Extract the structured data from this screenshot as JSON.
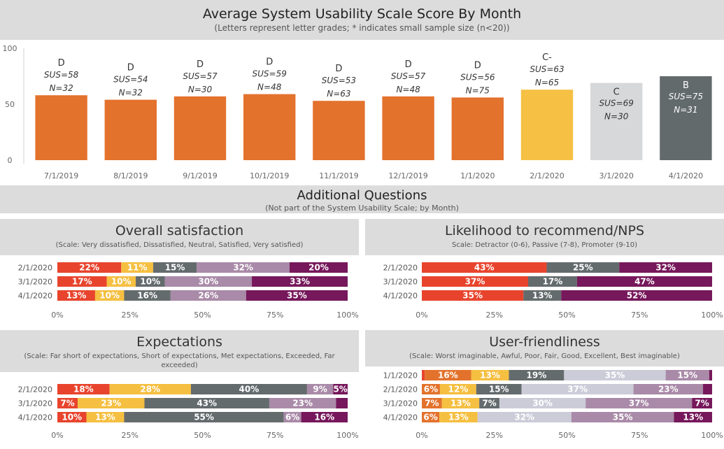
{
  "header": {
    "title": "Average System Usability Scale Score By Month",
    "subtitle": "(Letters represent letter grades; * indicates small sample size (n<20))"
  },
  "additional": {
    "title": "Additional Questions",
    "subtitle": "(Not part of the System Usability Scale; by Month)"
  },
  "colors": {
    "orange": "#e3722d",
    "yellow": "#f5c044",
    "lightgray": "#d6d8da",
    "darkgray": "#636a6c",
    "red": "#e8442d",
    "amber": "#f5bf41",
    "slate": "#646b6d",
    "lilac": "#ccccd9",
    "mauve": "#a98aa8",
    "plum": "#76185b"
  },
  "chart_data": [
    {
      "type": "bar",
      "title": "Average System Usability Scale Score By Month",
      "categories": [
        "7/1/2019",
        "8/1/2019",
        "9/1/2019",
        "10/1/2019",
        "11/1/2019",
        "12/1/2019",
        "1/1/2020",
        "2/1/2020",
        "3/1/2020",
        "4/1/2020"
      ],
      "values": [
        58,
        54,
        57,
        59,
        53,
        57,
        56,
        63,
        69,
        75
      ],
      "grades": [
        "D",
        "D",
        "D",
        "D",
        "D",
        "D",
        "D",
        "C-",
        "C",
        "B"
      ],
      "sus_labels": [
        "SUS=58",
        "SUS=54",
        "SUS=57",
        "SUS=59",
        "SUS=53",
        "SUS=57",
        "SUS=56",
        "SUS=63",
        "SUS=69",
        "SUS=75"
      ],
      "n_labels": [
        "N=32",
        "N=32",
        "N=30",
        "N=48",
        "N=63",
        "N=48",
        "N=75",
        "N=65",
        "N=30",
        "N=31"
      ],
      "bar_colors": [
        "#e3722d",
        "#e3722d",
        "#e3722d",
        "#e3722d",
        "#e3722d",
        "#e3722d",
        "#e3722d",
        "#f5c044",
        "#d6d8da",
        "#636a6c"
      ],
      "ylim": [
        0,
        100
      ],
      "yticks": [
        "0",
        "50",
        "100"
      ],
      "grid": false
    },
    {
      "type": "bar",
      "stacked": true,
      "orientation": "horizontal",
      "title": "Overall satisfaction",
      "subtitle": "(Scale: Very dissatisfied, Dissatisfied, Neutral, Satisfied, Very satisfied)",
      "categories": [
        "2/1/2020",
        "3/1/2020",
        "4/1/2020"
      ],
      "segment_colors": [
        "#e8442d",
        "#f5bf41",
        "#646b6d",
        "#a98aa8",
        "#76185b"
      ],
      "rows": [
        {
          "values": [
            22,
            11,
            15,
            32,
            20
          ],
          "labels": [
            "22%",
            "11%",
            "15%",
            "32%",
            "20%"
          ]
        },
        {
          "values": [
            17,
            10,
            10,
            30,
            33
          ],
          "labels": [
            "17%",
            "10%",
            "10%",
            "30%",
            "33%"
          ]
        },
        {
          "values": [
            13,
            10,
            16,
            26,
            35
          ],
          "labels": [
            "13%",
            "10%",
            "16%",
            "26%",
            "35%"
          ]
        }
      ],
      "xticks": [
        "0%",
        "25%",
        "50%",
        "75%",
        "100%"
      ]
    },
    {
      "type": "bar",
      "stacked": true,
      "orientation": "horizontal",
      "title": "Likelihood to recommend/NPS",
      "subtitle": "Scale: Detractor (0-6), Passive (7-8), Promoter (9-10)",
      "categories": [
        "2/1/2020",
        "3/1/2020",
        "4/1/2020"
      ],
      "segment_colors": [
        "#e8442d",
        "#646b6d",
        "#76185b"
      ],
      "rows": [
        {
          "values": [
            43,
            25,
            32
          ],
          "labels": [
            "43%",
            "25%",
            "32%"
          ]
        },
        {
          "values": [
            37,
            17,
            47
          ],
          "labels": [
            "37%",
            "17%",
            "47%"
          ]
        },
        {
          "values": [
            35,
            13,
            52
          ],
          "labels": [
            "35%",
            "13%",
            "52%"
          ]
        }
      ],
      "xticks": [
        "0%",
        "25%",
        "50%",
        "75%",
        "100%"
      ]
    },
    {
      "type": "bar",
      "stacked": true,
      "orientation": "horizontal",
      "title": "Expectations",
      "subtitle": "(Scale: Far short of expectations, Short of expectations, Met expectations, Exceeded, Far exceeded)",
      "categories": [
        "2/1/2020",
        "3/1/2020",
        "4/1/2020"
      ],
      "segment_colors": [
        "#e8442d",
        "#f5bf41",
        "#646b6d",
        "#a98aa8",
        "#76185b"
      ],
      "rows": [
        {
          "values": [
            18,
            28,
            40,
            9,
            5
          ],
          "labels": [
            "18%",
            "28%",
            "40%",
            "9%",
            "5%"
          ]
        },
        {
          "values": [
            7,
            23,
            43,
            23,
            4
          ],
          "labels": [
            "7%",
            "23%",
            "43%",
            "23%",
            ""
          ]
        },
        {
          "values": [
            10,
            13,
            55,
            6,
            16
          ],
          "labels": [
            "10%",
            "13%",
            "55%",
            "6%",
            "16%"
          ]
        }
      ],
      "xticks": [
        "0%",
        "25%",
        "50%",
        "75%",
        "100%"
      ]
    },
    {
      "type": "bar",
      "stacked": true,
      "orientation": "horizontal",
      "title": "User-friendliness",
      "subtitle": "(Scale: Worst imaginable, Awful, Poor, Fair, Good, Excellent, Best imaginable)",
      "categories": [
        "1/1/2020",
        "2/1/2020",
        "3/1/2020",
        "4/1/2020"
      ],
      "segment_colors": [
        "#e8442d",
        "#e3722d",
        "#f5bf41",
        "#646b6d",
        "#ccccd9",
        "#a98aa8",
        "#76185b"
      ],
      "rows": [
        {
          "values": [
            1,
            16,
            13,
            19,
            35,
            15,
            1
          ],
          "labels": [
            "",
            "16%",
            "13%",
            "19%",
            "35%",
            "15%",
            ""
          ]
        },
        {
          "values": [
            0,
            6,
            12,
            15,
            37,
            23,
            3
          ],
          "labels": [
            "",
            "6%",
            "12%",
            "15%",
            "37%",
            "23%",
            ""
          ]
        },
        {
          "values": [
            0,
            7,
            13,
            7,
            30,
            37,
            7
          ],
          "labels": [
            "",
            "7%",
            "13%",
            "7%",
            "30%",
            "37%",
            "7%"
          ]
        },
        {
          "values": [
            0,
            6,
            13,
            0,
            32,
            35,
            13
          ],
          "labels": [
            "",
            "6%",
            "13%",
            "",
            "32%",
            "35%",
            "13%"
          ]
        }
      ],
      "xticks": [
        "0%",
        "25%",
        "50%",
        "75%",
        "100%"
      ]
    }
  ]
}
